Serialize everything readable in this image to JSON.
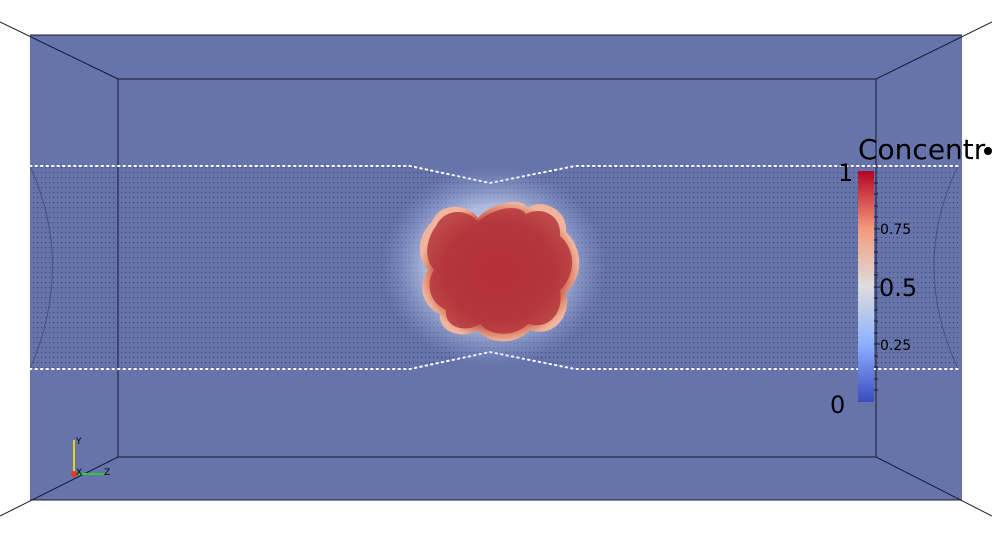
{
  "colorbar": {
    "title": "Concentr",
    "ticks": [
      {
        "label": "1",
        "value": 1
      },
      {
        "label": "0.75",
        "value": 0.75
      },
      {
        "label": "0.5",
        "value": 0.5
      },
      {
        "label": "0.25",
        "value": 0.25
      },
      {
        "label": "0",
        "value": 0
      }
    ],
    "colormap": [
      "#3b4cc0",
      "#8db0fe",
      "#dddddd",
      "#f49a7b",
      "#b40426"
    ]
  },
  "axes": {
    "y_label": "Y",
    "x_label": "X",
    "z_label": "Z"
  },
  "colors": {
    "background": "#6674ab",
    "frame_lines": "#1a1a2e",
    "y_axis": "#e6d21a",
    "x_axis": "#e23a1f",
    "z_axis": "#35c43a",
    "high_concentration": "#b40426"
  }
}
